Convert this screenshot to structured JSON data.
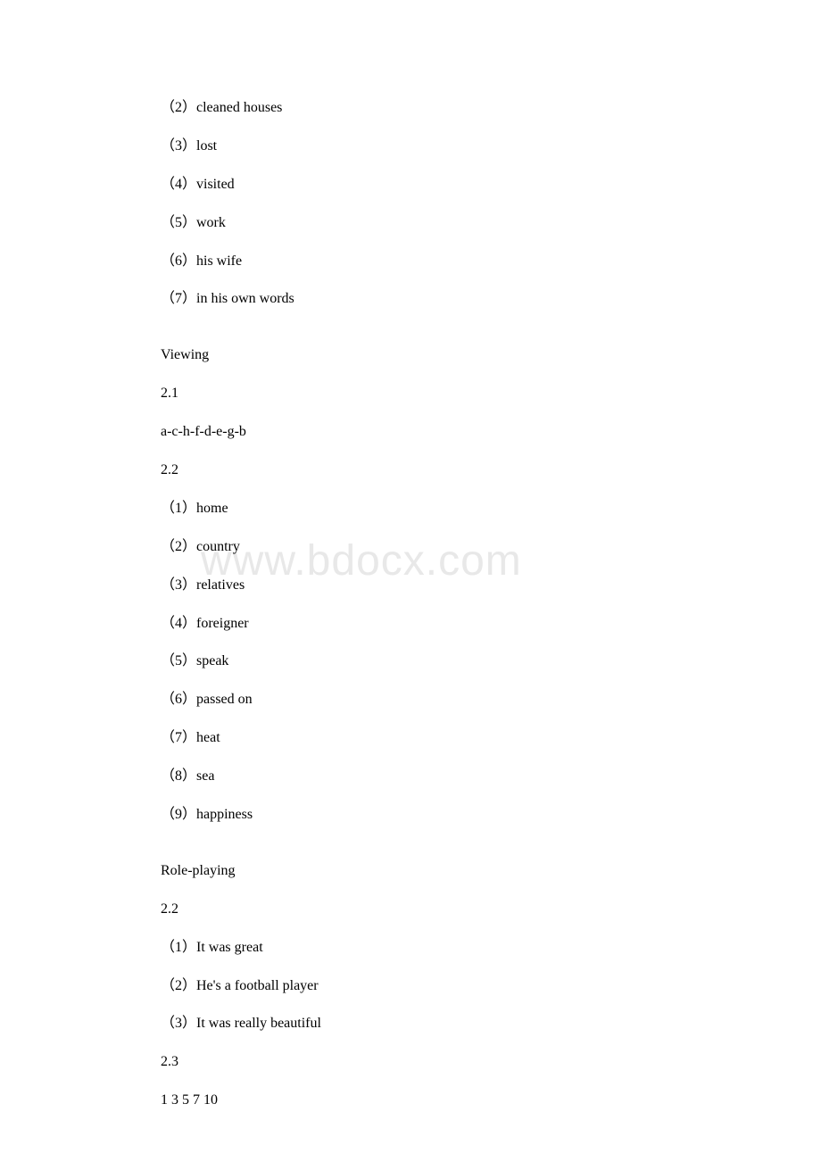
{
  "watermark": "www.bdocx.com",
  "lines": [
    {
      "text": "（2）cleaned houses",
      "type": "normal"
    },
    {
      "text": "（3）lost",
      "type": "normal"
    },
    {
      "text": "（4）visited",
      "type": "normal"
    },
    {
      "text": "（5）work",
      "type": "normal"
    },
    {
      "text": "（6）his wife",
      "type": "normal"
    },
    {
      "text": "（7）in his own words",
      "type": "normal"
    },
    {
      "text": "",
      "type": "spacer"
    },
    {
      "text": "Viewing",
      "type": "normal"
    },
    {
      "text": "2.1",
      "type": "normal"
    },
    {
      "text": "a-c-h-f-d-e-g-b",
      "type": "normal"
    },
    {
      "text": "2.2",
      "type": "normal"
    },
    {
      "text": "（1）home",
      "type": "normal"
    },
    {
      "text": "（2）country",
      "type": "normal"
    },
    {
      "text": "（3）relatives",
      "type": "normal"
    },
    {
      "text": "（4）foreigner",
      "type": "normal"
    },
    {
      "text": "（5）speak",
      "type": "normal"
    },
    {
      "text": "（6）passed on",
      "type": "normal"
    },
    {
      "text": "（7）heat",
      "type": "normal"
    },
    {
      "text": "（8）sea",
      "type": "normal"
    },
    {
      "text": "（9）happiness",
      "type": "normal"
    },
    {
      "text": "",
      "type": "spacer"
    },
    {
      "text": "Role-playing",
      "type": "normal"
    },
    {
      "text": "2.2",
      "type": "normal"
    },
    {
      "text": "（1）It was great",
      "type": "normal"
    },
    {
      "text": "（2）He's a football player",
      "type": "normal"
    },
    {
      "text": "（3）It was really beautiful",
      "type": "normal"
    },
    {
      "text": "2.3",
      "type": "normal"
    },
    {
      "text": "1 3 5 7 10",
      "type": "normal"
    }
  ]
}
